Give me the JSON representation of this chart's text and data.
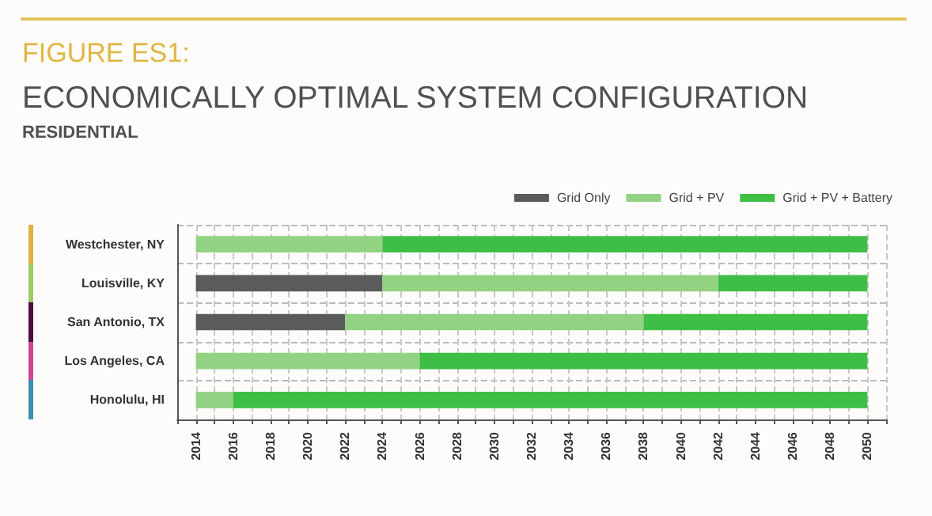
{
  "chart_data": {
    "type": "bar",
    "orientation": "horizontal",
    "title": "FIGURE ES1:",
    "subtitle": "ECONOMICALLY OPTIMAL SYSTEM CONFIGURATION",
    "annotations": [
      "RESIDENTIAL"
    ],
    "categories": [
      "Westchester, NY",
      "Louisville, KY",
      "San Antonio, TX",
      "Los Angeles, CA",
      "Honolulu, HI"
    ],
    "series": [
      {
        "name": "Grid Only",
        "color": "#5b5b5b",
        "base": [
          null,
          2014,
          2014,
          null,
          null
        ],
        "values": [
          null,
          10,
          8,
          null,
          null
        ]
      },
      {
        "name": "Grid + PV",
        "color": "#92d283",
        "base": [
          2014,
          2024,
          2022,
          2014,
          2014
        ],
        "values": [
          10,
          18,
          16,
          12,
          2
        ]
      },
      {
        "name": "Grid + PV + Battery",
        "color": "#3fbe45",
        "base": [
          2024,
          2042,
          2038,
          2026,
          2016
        ],
        "values": [
          26,
          8,
          12,
          24,
          34
        ]
      }
    ],
    "xlim": [
      2013,
      2051
    ],
    "xticks": [
      {
        "value": 2013,
        "label": null
      },
      2014,
      {
        "value": 2015,
        "label": null
      },
      2016,
      {
        "value": 2017,
        "label": null
      },
      2018,
      {
        "value": 2019,
        "label": null
      },
      2020,
      {
        "value": 2021,
        "label": null
      },
      2022,
      {
        "value": 2023,
        "label": null
      },
      2024,
      {
        "value": 2025,
        "label": null
      },
      2026,
      {
        "value": 2027,
        "label": null
      },
      2028,
      {
        "value": 2029,
        "label": null
      },
      2030,
      {
        "value": 2031,
        "label": null
      },
      2032,
      {
        "value": 2033,
        "label": null
      },
      2034,
      {
        "value": 2035,
        "label": null
      },
      2036,
      {
        "value": 2037,
        "label": null
      },
      2038,
      {
        "value": 2039,
        "label": null
      },
      2040,
      {
        "value": 2041,
        "label": null
      },
      2042,
      {
        "value": 2043,
        "label": null
      },
      2044,
      {
        "value": 2045,
        "label": null
      },
      2046,
      {
        "value": 2047,
        "label": null
      },
      2048,
      {
        "value": 2049,
        "label": null
      },
      2050,
      {
        "value": 2051,
        "label": null
      }
    ],
    "grid": true,
    "legend": "top right"
  }
}
